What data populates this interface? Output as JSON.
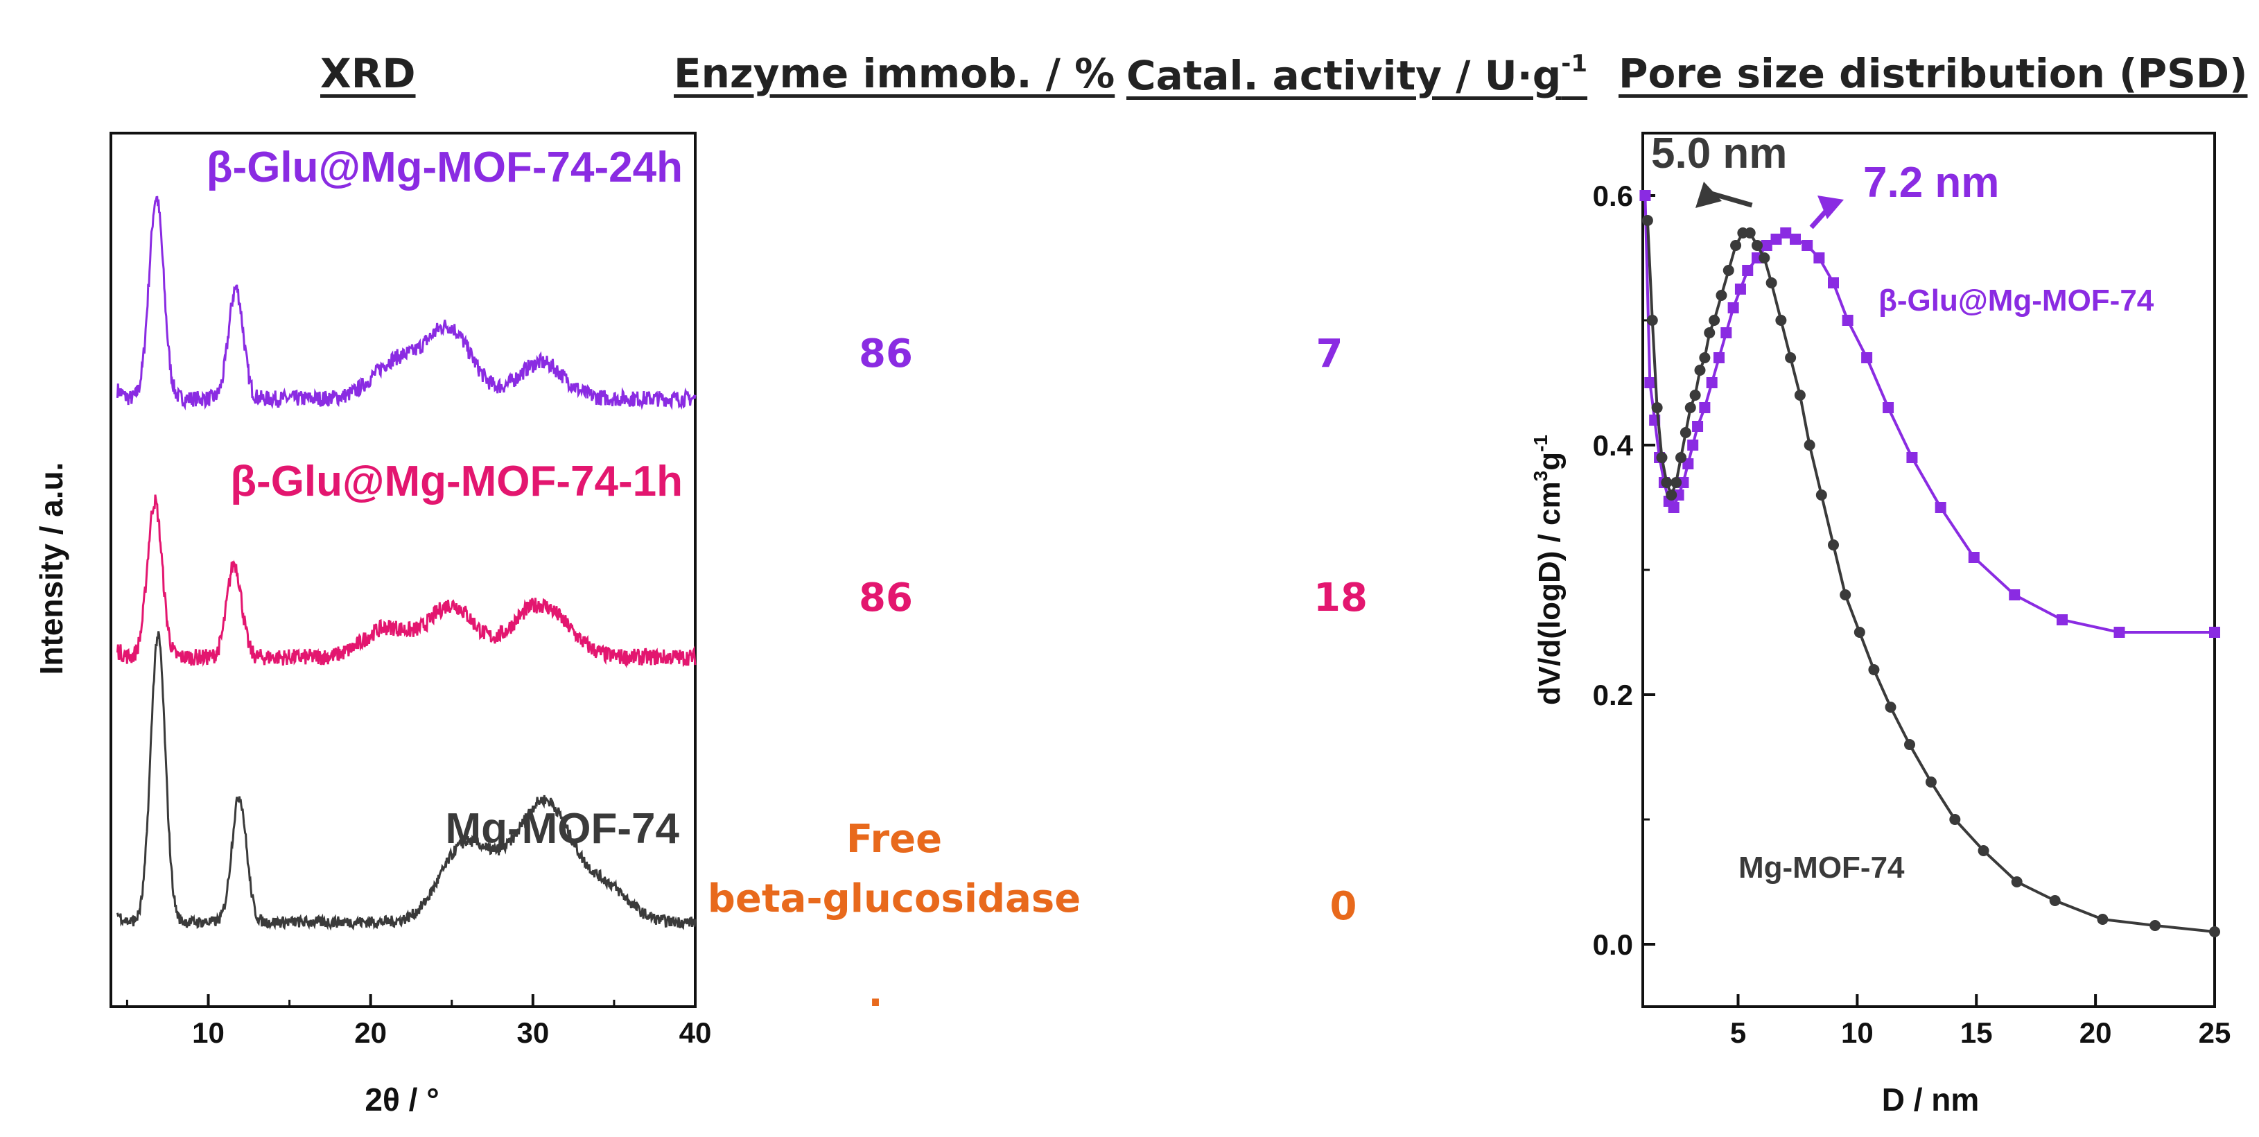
{
  "headers": {
    "xrd": "XRD",
    "immob": "Enzyme immob. / %",
    "activity_prefix": "Catal. activity / U·g",
    "activity_sup": "-1",
    "psd": "Pore size distribution (PSD)"
  },
  "table": {
    "rows": [
      {
        "sample": "β-Glu@Mg-MOF-74-24h",
        "immob": "86",
        "activity": "7"
      },
      {
        "sample": "β-Glu@Mg-MOF-74-1h",
        "immob": "86",
        "activity": "18"
      },
      {
        "sample": "Mg-MOF-74",
        "immob_line1": "Free",
        "immob_line2": "beta-glucosidase",
        "activity": "0"
      }
    ],
    "stray_mark": "."
  },
  "colors": {
    "purple": "#8a2be2",
    "magenta": "#e3166f",
    "dark": "#3a3a3a",
    "orange": "#e8691c"
  },
  "chart_data": [
    {
      "type": "line",
      "title": "XRD",
      "xlabel": "2θ / °",
      "ylabel": "Intensity / a.u.",
      "xlim": [
        4,
        40
      ],
      "xticks": [
        "10",
        "20",
        "30",
        "40"
      ],
      "series": [
        {
          "name": "β-Glu@Mg-MOF-74-24h",
          "color": "#8a2be2",
          "offset": 2.0,
          "peaks": [
            [
              6.8,
              1.0
            ],
            [
              11.7,
              0.55
            ],
            [
              21.5,
              0.18
            ],
            [
              24.8,
              0.35
            ],
            [
              30.5,
              0.18
            ]
          ]
        },
        {
          "name": "β-Glu@Mg-MOF-74-1h",
          "color": "#e3166f",
          "offset": 1.0,
          "peaks": [
            [
              6.7,
              0.75
            ],
            [
              11.6,
              0.45
            ],
            [
              21.0,
              0.14
            ],
            [
              25.0,
              0.25
            ],
            [
              29.8,
              0.18
            ],
            [
              31.5,
              0.12
            ]
          ]
        },
        {
          "name": "Mg-MOF-74",
          "color": "#3a3a3a",
          "offset": 0.0,
          "peaks": [
            [
              6.9,
              1.25
            ],
            [
              11.9,
              0.55
            ],
            [
              25.5,
              0.28
            ],
            [
              27.5,
              0.15
            ],
            [
              30.0,
              0.3
            ],
            [
              31.5,
              0.3
            ],
            [
              34.5,
              0.15
            ]
          ]
        }
      ]
    },
    {
      "type": "line",
      "title": "Pore size distribution (PSD)",
      "xlabel": "D / nm",
      "ylabel_main": "dV/d(logD) / cm",
      "ylabel_sup1": "3",
      "ylabel_mid": "g",
      "ylabel_sup2": "-1",
      "xlim": [
        1,
        25
      ],
      "ylim": [
        -0.05,
        0.65
      ],
      "xticks": [
        "5",
        "10",
        "15",
        "20",
        "25"
      ],
      "yticks": [
        "0.0",
        "0.2",
        "0.4",
        "0.6"
      ],
      "annotations": [
        {
          "text": "5.0 nm",
          "x": 5.0,
          "y": 0.57,
          "color": "#3a3a3a"
        },
        {
          "text": "7.2 nm",
          "x": 7.2,
          "y": 0.57,
          "color": "#8a2be2"
        }
      ],
      "series": [
        {
          "name": "β-Glu@Mg-MOF-74",
          "color": "#8a2be2",
          "marker": "square",
          "x": [
            1.1,
            1.3,
            1.5,
            1.7,
            1.9,
            2.1,
            2.3,
            2.5,
            2.7,
            2.9,
            3.1,
            3.3,
            3.6,
            3.9,
            4.2,
            4.5,
            4.8,
            5.1,
            5.4,
            5.8,
            6.2,
            6.6,
            7.0,
            7.4,
            7.9,
            8.4,
            9.0,
            9.6,
            10.4,
            11.3,
            12.3,
            13.5,
            14.9,
            16.6,
            18.6,
            21.0,
            25.0
          ],
          "y": [
            0.6,
            0.45,
            0.42,
            0.39,
            0.37,
            0.355,
            0.35,
            0.36,
            0.37,
            0.385,
            0.4,
            0.415,
            0.43,
            0.45,
            0.47,
            0.49,
            0.51,
            0.525,
            0.54,
            0.55,
            0.56,
            0.565,
            0.57,
            0.565,
            0.56,
            0.55,
            0.53,
            0.5,
            0.47,
            0.43,
            0.39,
            0.35,
            0.31,
            0.28,
            0.26,
            0.25,
            0.25
          ]
        },
        {
          "name": "Mg-MOF-74",
          "color": "#3a3a3a",
          "marker": "circle",
          "x": [
            1.2,
            1.4,
            1.6,
            1.8,
            2.0,
            2.2,
            2.4,
            2.6,
            2.8,
            3.0,
            3.2,
            3.4,
            3.6,
            3.8,
            4.0,
            4.3,
            4.6,
            4.9,
            5.2,
            5.5,
            5.8,
            6.1,
            6.4,
            6.8,
            7.2,
            7.6,
            8.0,
            8.5,
            9.0,
            9.5,
            10.1,
            10.7,
            11.4,
            12.2,
            13.1,
            14.1,
            15.3,
            16.7,
            18.3,
            20.3,
            22.5,
            25.0
          ],
          "y": [
            0.58,
            0.5,
            0.43,
            0.39,
            0.37,
            0.36,
            0.37,
            0.39,
            0.41,
            0.43,
            0.44,
            0.46,
            0.47,
            0.49,
            0.5,
            0.52,
            0.54,
            0.56,
            0.57,
            0.57,
            0.56,
            0.55,
            0.53,
            0.5,
            0.47,
            0.44,
            0.4,
            0.36,
            0.32,
            0.28,
            0.25,
            0.22,
            0.19,
            0.16,
            0.13,
            0.1,
            0.075,
            0.05,
            0.035,
            0.02,
            0.015,
            0.01
          ]
        }
      ]
    }
  ]
}
